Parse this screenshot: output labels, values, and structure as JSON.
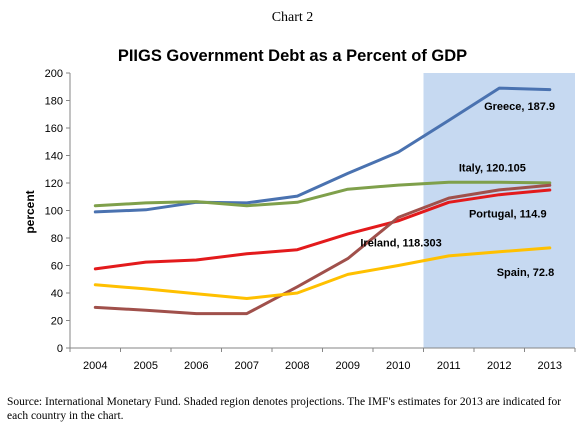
{
  "figure": {
    "caption": "Chart 2",
    "source_note": "Source: International Monetary Fund. Shaded region denotes projections. The IMF's estimates for 2013 are indicated for each country in the chart."
  },
  "chart_data": {
    "type": "line",
    "title": "PIIGS Government Debt as a Percent of GDP",
    "xlabel": "",
    "ylabel": "percent",
    "x": [
      2004,
      2005,
      2006,
      2007,
      2008,
      2009,
      2010,
      2011,
      2012,
      2013
    ],
    "x_tick_labels": [
      "2004",
      "2005",
      "2006",
      "2007",
      "2008",
      "2009",
      "2010",
      "2011",
      "2012",
      "2013"
    ],
    "ylim": [
      0,
      200
    ],
    "y_ticks": [
      0,
      20,
      40,
      60,
      80,
      100,
      120,
      140,
      160,
      180,
      200
    ],
    "y_tick_labels": [
      "0",
      "20",
      "40",
      "60",
      "80",
      "100",
      "120",
      "140",
      "160",
      "180",
      "200"
    ],
    "grid": false,
    "legend": "none (series labeled directly on chart)",
    "projection_shading": {
      "from": 2010.5,
      "to": 2013.5,
      "color": "#c6d9f1"
    },
    "series": [
      {
        "name": "Greece",
        "label": "Greece, 187.9",
        "color": "#4a72b0",
        "values": [
          99,
          100.5,
          106,
          105.5,
          110.5,
          127,
          142.5,
          165.5,
          189,
          187.9
        ]
      },
      {
        "name": "Italy",
        "label": "Italy, 120.105",
        "color": "#7fa04b",
        "values": [
          103.5,
          105.5,
          106.5,
          103.5,
          106,
          115.5,
          118.5,
          120.5,
          120.5,
          120.105
        ]
      },
      {
        "name": "Portugal",
        "label": "Portugal, 114.9",
        "color": "#e31a1c",
        "values": [
          57.5,
          62.5,
          64,
          68.5,
          71.5,
          83,
          92.5,
          106,
          111.5,
          114.9
        ]
      },
      {
        "name": "Ireland",
        "label": "Ireland, 118.303",
        "color": "#a0504b",
        "values": [
          29.5,
          27.5,
          25,
          25,
          44.5,
          65,
          95,
          109,
          115,
          118.303
        ]
      },
      {
        "name": "Spain",
        "label": "Spain, 72.8",
        "color": "#ffc000",
        "values": [
          46,
          43,
          39.5,
          36,
          40,
          53.5,
          60,
          67,
          70,
          72.8
        ]
      }
    ]
  }
}
